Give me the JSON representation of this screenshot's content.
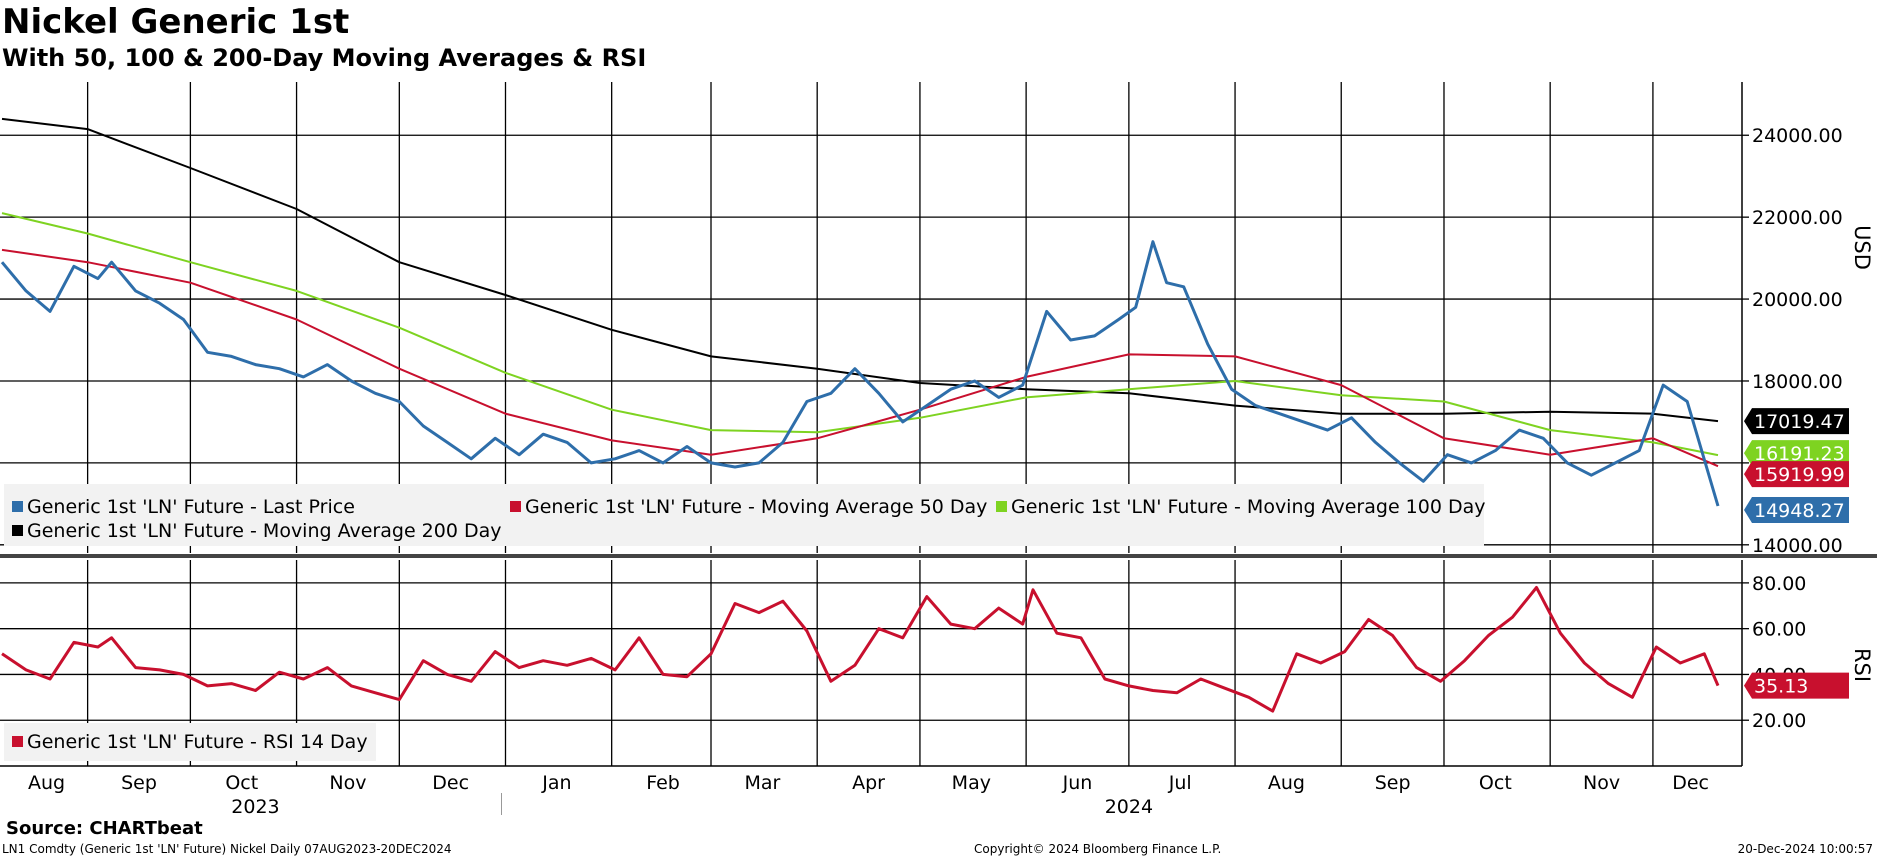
{
  "header": {
    "title": "Nickel Generic 1st",
    "subtitle": "With 50, 100 & 200-Day Moving Averages & RSI"
  },
  "footer": {
    "source": "Source: CHARTbeat",
    "left": "LN1 Comdty (Generic 1st 'LN' Future) Nickel  Daily 07AUG2023-20DEC2024",
    "center": "Copyright© 2024 Bloomberg Finance L.P.",
    "right": "20-Dec-2024 10:00:57"
  },
  "colors": {
    "price": "#2e6eaa",
    "ma50": "#c8102e",
    "ma100": "#7ed321",
    "ma200": "#000000",
    "rsi": "#c8102e",
    "legend_bg": "#f2f2f2"
  },
  "chart_data": [
    {
      "type": "line",
      "panel": "price",
      "ylabel": "USD",
      "ylim": [
        13800,
        25300
      ],
      "y_ticks": [
        "24000.00",
        "22000.00",
        "20000.00",
        "18000.00",
        "16000.00",
        "14000.00"
      ],
      "x_tick_labels": [
        "Aug",
        "Sep",
        "Oct",
        "Nov",
        "Dec",
        "Jan",
        "Feb",
        "Mar",
        "Apr",
        "May",
        "Jun",
        "Jul",
        "Aug",
        "Sep",
        "Oct",
        "Nov",
        "Dec"
      ],
      "year_labels": [
        "2023",
        "2024"
      ],
      "x_range": [
        "2023-08-07",
        "2024-12-20"
      ],
      "grid": true,
      "legend_position": "bottom-left",
      "series": [
        {
          "name": "Generic 1st 'LN' Future - Last Price",
          "color": "#2e6eaa",
          "last_label": "14948.27",
          "points": [
            [
              "2023-08-07",
              20900
            ],
            [
              "2023-08-14",
              20200
            ],
            [
              "2023-08-21",
              19700
            ],
            [
              "2023-08-28",
              20800
            ],
            [
              "2023-09-04",
              20500
            ],
            [
              "2023-09-08",
              20900
            ],
            [
              "2023-09-15",
              20200
            ],
            [
              "2023-09-22",
              19900
            ],
            [
              "2023-09-29",
              19500
            ],
            [
              "2023-10-06",
              18700
            ],
            [
              "2023-10-13",
              18600
            ],
            [
              "2023-10-20",
              18400
            ],
            [
              "2023-10-27",
              18300
            ],
            [
              "2023-11-03",
              18100
            ],
            [
              "2023-11-10",
              18400
            ],
            [
              "2023-11-17",
              18000
            ],
            [
              "2023-11-24",
              17700
            ],
            [
              "2023-12-01",
              17500
            ],
            [
              "2023-12-08",
              16900
            ],
            [
              "2023-12-15",
              16500
            ],
            [
              "2023-12-22",
              16100
            ],
            [
              "2023-12-29",
              16600
            ],
            [
              "2024-01-05",
              16200
            ],
            [
              "2024-01-12",
              16700
            ],
            [
              "2024-01-19",
              16500
            ],
            [
              "2024-01-26",
              16000
            ],
            [
              "2024-02-02",
              16100
            ],
            [
              "2024-02-09",
              16300
            ],
            [
              "2024-02-16",
              16000
            ],
            [
              "2024-02-23",
              16400
            ],
            [
              "2024-03-01",
              16000
            ],
            [
              "2024-03-08",
              15900
            ],
            [
              "2024-03-15",
              16000
            ],
            [
              "2024-03-22",
              16500
            ],
            [
              "2024-03-29",
              17500
            ],
            [
              "2024-04-05",
              17700
            ],
            [
              "2024-04-12",
              18300
            ],
            [
              "2024-04-19",
              17700
            ],
            [
              "2024-04-26",
              17000
            ],
            [
              "2024-05-03",
              17400
            ],
            [
              "2024-05-10",
              17800
            ],
            [
              "2024-05-17",
              18000
            ],
            [
              "2024-05-24",
              17600
            ],
            [
              "2024-05-31",
              17900
            ],
            [
              "2024-06-07",
              19700
            ],
            [
              "2024-06-14",
              19000
            ],
            [
              "2024-06-21",
              19100
            ],
            [
              "2024-06-28",
              19500
            ],
            [
              "2024-07-03",
              19800
            ],
            [
              "2024-07-08",
              21400
            ],
            [
              "2024-07-12",
              20400
            ],
            [
              "2024-07-17",
              20300
            ],
            [
              "2024-07-24",
              18900
            ],
            [
              "2024-07-31",
              17800
            ],
            [
              "2024-08-07",
              17400
            ],
            [
              "2024-08-14",
              17200
            ],
            [
              "2024-08-21",
              17000
            ],
            [
              "2024-08-28",
              16800
            ],
            [
              "2024-09-04",
              17100
            ],
            [
              "2024-09-11",
              16500
            ],
            [
              "2024-09-18",
              16000
            ],
            [
              "2024-09-25",
              15550
            ],
            [
              "2024-10-02",
              16200
            ],
            [
              "2024-10-09",
              16000
            ],
            [
              "2024-10-16",
              16300
            ],
            [
              "2024-10-23",
              16800
            ],
            [
              "2024-10-30",
              16600
            ],
            [
              "2024-11-06",
              16000
            ],
            [
              "2024-11-13",
              15700
            ],
            [
              "2024-11-20",
              16000
            ],
            [
              "2024-11-27",
              16300
            ],
            [
              "2024-12-04",
              17900
            ],
            [
              "2024-12-11",
              17500
            ],
            [
              "2024-12-20",
              14948
            ]
          ]
        },
        {
          "name": "Generic 1st 'LN' Future - Moving Average 50 Day",
          "color": "#c8102e",
          "last_label": "15919.99",
          "points": [
            [
              "2023-08-07",
              21200
            ],
            [
              "2023-09-01",
              20900
            ],
            [
              "2023-10-01",
              20400
            ],
            [
              "2023-11-01",
              19500
            ],
            [
              "2023-12-01",
              18300
            ],
            [
              "2024-01-01",
              17200
            ],
            [
              "2024-02-01",
              16550
            ],
            [
              "2024-03-01",
              16200
            ],
            [
              "2024-04-01",
              16600
            ],
            [
              "2024-05-01",
              17300
            ],
            [
              "2024-06-01",
              18100
            ],
            [
              "2024-07-01",
              18650
            ],
            [
              "2024-08-01",
              18600
            ],
            [
              "2024-09-01",
              17900
            ],
            [
              "2024-10-01",
              16600
            ],
            [
              "2024-11-01",
              16200
            ],
            [
              "2024-12-01",
              16600
            ],
            [
              "2024-12-20",
              15920
            ]
          ]
        },
        {
          "name": "Generic 1st 'LN' Future - Moving Average 100 Day",
          "color": "#7ed321",
          "last_label": "16191.23",
          "points": [
            [
              "2023-08-07",
              22100
            ],
            [
              "2023-09-01",
              21600
            ],
            [
              "2023-10-01",
              20900
            ],
            [
              "2023-11-01",
              20200
            ],
            [
              "2023-12-01",
              19300
            ],
            [
              "2024-01-01",
              18200
            ],
            [
              "2024-02-01",
              17300
            ],
            [
              "2024-03-01",
              16800
            ],
            [
              "2024-04-01",
              16750
            ],
            [
              "2024-05-01",
              17100
            ],
            [
              "2024-06-01",
              17600
            ],
            [
              "2024-07-01",
              17800
            ],
            [
              "2024-08-01",
              18000
            ],
            [
              "2024-09-01",
              17650
            ],
            [
              "2024-10-01",
              17500
            ],
            [
              "2024-11-01",
              16800
            ],
            [
              "2024-12-01",
              16500
            ],
            [
              "2024-12-20",
              16190
            ]
          ]
        },
        {
          "name": "Generic 1st 'LN' Future - Moving Average 200 Day",
          "color": "#000000",
          "last_label": "17019.47",
          "points": [
            [
              "2023-08-07",
              24400
            ],
            [
              "2023-09-01",
              24150
            ],
            [
              "2023-10-01",
              23200
            ],
            [
              "2023-11-01",
              22200
            ],
            [
              "2023-12-01",
              20900
            ],
            [
              "2024-01-01",
              20100
            ],
            [
              "2024-02-01",
              19250
            ],
            [
              "2024-03-01",
              18600
            ],
            [
              "2024-04-01",
              18300
            ],
            [
              "2024-05-01",
              17950
            ],
            [
              "2024-06-01",
              17800
            ],
            [
              "2024-07-01",
              17700
            ],
            [
              "2024-08-01",
              17400
            ],
            [
              "2024-09-01",
              17200
            ],
            [
              "2024-10-01",
              17200
            ],
            [
              "2024-11-01",
              17250
            ],
            [
              "2024-12-01",
              17200
            ],
            [
              "2024-12-20",
              17020
            ]
          ]
        }
      ]
    },
    {
      "type": "line",
      "panel": "rsi",
      "ylabel": "RSI",
      "ylim": [
        0,
        90
      ],
      "y_ticks": [
        "80.00",
        "60.00",
        "40.00",
        "20.00"
      ],
      "grid": true,
      "legend_position": "bottom-left",
      "series": [
        {
          "name": "Generic 1st 'LN' Future - RSI 14 Day",
          "color": "#c8102e",
          "last_label": "35.13",
          "points": [
            [
              "2023-08-07",
              49
            ],
            [
              "2023-08-14",
              42
            ],
            [
              "2023-08-21",
              38
            ],
            [
              "2023-08-28",
              54
            ],
            [
              "2023-09-04",
              52
            ],
            [
              "2023-09-08",
              56
            ],
            [
              "2023-09-15",
              43
            ],
            [
              "2023-09-22",
              42
            ],
            [
              "2023-09-29",
              40
            ],
            [
              "2023-10-06",
              35
            ],
            [
              "2023-10-13",
              36
            ],
            [
              "2023-10-20",
              33
            ],
            [
              "2023-10-27",
              41
            ],
            [
              "2023-11-03",
              38
            ],
            [
              "2023-11-10",
              43
            ],
            [
              "2023-11-17",
              35
            ],
            [
              "2023-11-24",
              32
            ],
            [
              "2023-12-01",
              29
            ],
            [
              "2023-12-08",
              46
            ],
            [
              "2023-12-15",
              40
            ],
            [
              "2023-12-22",
              37
            ],
            [
              "2023-12-29",
              50
            ],
            [
              "2024-01-05",
              43
            ],
            [
              "2024-01-12",
              46
            ],
            [
              "2024-01-19",
              44
            ],
            [
              "2024-01-26",
              47
            ],
            [
              "2024-02-02",
              42
            ],
            [
              "2024-02-09",
              56
            ],
            [
              "2024-02-16",
              40
            ],
            [
              "2024-02-23",
              39
            ],
            [
              "2024-03-01",
              49
            ],
            [
              "2024-03-08",
              71
            ],
            [
              "2024-03-15",
              67
            ],
            [
              "2024-03-22",
              72
            ],
            [
              "2024-03-29",
              59
            ],
            [
              "2024-04-05",
              37
            ],
            [
              "2024-04-12",
              44
            ],
            [
              "2024-04-19",
              60
            ],
            [
              "2024-04-26",
              56
            ],
            [
              "2024-05-03",
              74
            ],
            [
              "2024-05-10",
              62
            ],
            [
              "2024-05-17",
              60
            ],
            [
              "2024-05-24",
              69
            ],
            [
              "2024-05-31",
              62
            ],
            [
              "2024-06-03",
              77
            ],
            [
              "2024-06-10",
              58
            ],
            [
              "2024-06-17",
              56
            ],
            [
              "2024-06-24",
              38
            ],
            [
              "2024-07-01",
              35
            ],
            [
              "2024-07-08",
              33
            ],
            [
              "2024-07-15",
              32
            ],
            [
              "2024-07-22",
              38
            ],
            [
              "2024-07-29",
              34
            ],
            [
              "2024-08-05",
              30
            ],
            [
              "2024-08-12",
              24
            ],
            [
              "2024-08-19",
              49
            ],
            [
              "2024-08-26",
              45
            ],
            [
              "2024-09-02",
              50
            ],
            [
              "2024-09-09",
              64
            ],
            [
              "2024-09-16",
              57
            ],
            [
              "2024-09-23",
              43
            ],
            [
              "2024-09-30",
              37
            ],
            [
              "2024-10-07",
              46
            ],
            [
              "2024-10-14",
              57
            ],
            [
              "2024-10-21",
              65
            ],
            [
              "2024-10-28",
              78
            ],
            [
              "2024-11-04",
              58
            ],
            [
              "2024-11-11",
              45
            ],
            [
              "2024-11-18",
              36
            ],
            [
              "2024-11-25",
              30
            ],
            [
              "2024-12-02",
              52
            ],
            [
              "2024-12-09",
              45
            ],
            [
              "2024-12-16",
              49
            ],
            [
              "2024-12-20",
              35.13
            ]
          ]
        }
      ]
    }
  ]
}
